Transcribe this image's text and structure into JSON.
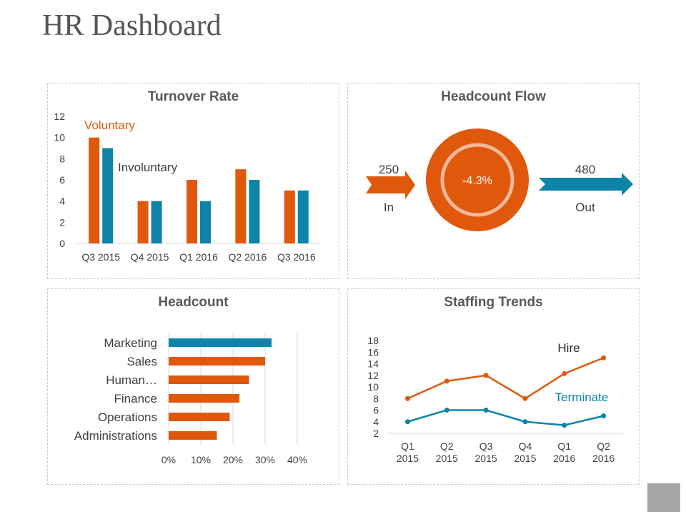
{
  "page": {
    "title": "HR Dashboard"
  },
  "colors": {
    "orange": "#e0580c",
    "blue": "#0d84a8",
    "ring": "#f5b89a",
    "axis": "#d9d9d9",
    "text": "#404040"
  },
  "panels": {
    "turnover": {
      "title": "Turnover Rate"
    },
    "flow": {
      "title": "Headcount Flow"
    },
    "headcount": {
      "title": "Headcount"
    },
    "staffing": {
      "title": "Staffing Trends"
    }
  },
  "chart_data": [
    {
      "type": "bar",
      "title": "Turnover Rate",
      "categories": [
        "Q3 2015",
        "Q4 2015",
        "Q1 2016",
        "Q2 2016",
        "Q3 2016"
      ],
      "series": [
        {
          "name": "Voluntary",
          "values": [
            10,
            4,
            6,
            7,
            5
          ]
        },
        {
          "name": "Involuntary",
          "values": [
            9,
            4,
            4,
            6,
            5
          ]
        }
      ],
      "yticks": [
        "0",
        "2",
        "4",
        "6",
        "8",
        "10",
        "12"
      ],
      "ylim": [
        0,
        12
      ],
      "grid": false,
      "legend": "inline labels"
    },
    {
      "type": "table",
      "title": "Headcount Flow",
      "in": {
        "value": "250",
        "label": "In"
      },
      "out": {
        "value": "480",
        "label": "Out"
      },
      "change": "-4.3%"
    },
    {
      "type": "bar",
      "orientation": "horizontal",
      "title": "Headcount",
      "categories": [
        "Marketing",
        "Sales",
        "Human…",
        "Finance",
        "Operations",
        "Administrations"
      ],
      "values": [
        32,
        30,
        25,
        22,
        19,
        15
      ],
      "xticks": [
        "0%",
        "10%",
        "20%",
        "30%",
        "40%"
      ],
      "xlim": [
        0,
        40
      ],
      "grid": true
    },
    {
      "type": "line",
      "title": "Staffing Trends",
      "categories": [
        "Q1|2015",
        "Q2|2015",
        "Q3|2015",
        "Q4|2015",
        "Q1|2016",
        "Q2|2016"
      ],
      "series": [
        {
          "name": "Hire",
          "values": [
            8,
            11,
            12,
            8,
            12.3,
            15
          ]
        },
        {
          "name": "Terminate",
          "values": [
            4,
            6,
            6,
            4,
            3.4,
            5
          ]
        }
      ],
      "yticks": [
        "2",
        "4",
        "6",
        "8",
        "10",
        "12",
        "14",
        "16",
        "18"
      ],
      "ylim": [
        2,
        18
      ],
      "grid": false,
      "legend": "inline labels"
    }
  ]
}
